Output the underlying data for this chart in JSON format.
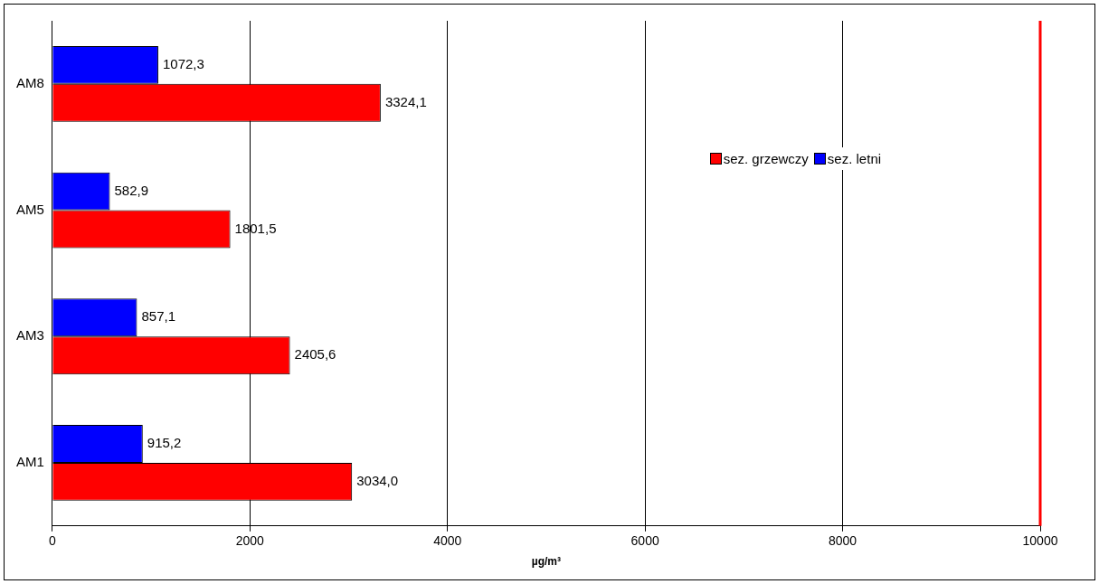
{
  "chart_data": {
    "type": "bar",
    "orientation": "horizontal",
    "xlabel": "µg/m³",
    "categories": [
      "AM8",
      "AM5",
      "AM3",
      "AM1"
    ],
    "series": [
      {
        "name": "sez. letni",
        "color": "#0000ff",
        "values": [
          1072.3,
          582.9,
          857.1,
          915.2
        ],
        "value_labels": [
          "1072,3",
          "582,9",
          "857,1",
          "915,2"
        ]
      },
      {
        "name": "sez. grzewczy",
        "color": "#ff0000",
        "values": [
          3324.1,
          1801.5,
          2405.6,
          3034.0
        ],
        "value_labels": [
          "3324,1",
          "1801,5",
          "2405,6",
          "3034,0"
        ]
      }
    ],
    "xlim": [
      0,
      10000
    ],
    "xticks": [
      0,
      2000,
      4000,
      6000,
      8000,
      10000
    ],
    "grid": "x",
    "legend": "right",
    "ref_lines": [
      {
        "axis": "x",
        "value": 10000,
        "color": "#ff0000"
      }
    ]
  }
}
